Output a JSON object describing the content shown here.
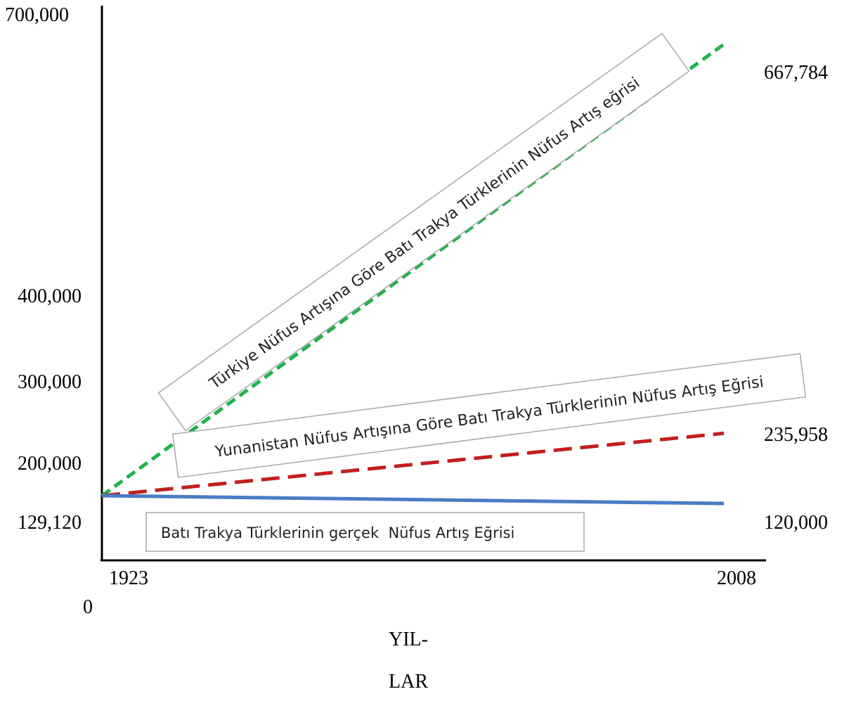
{
  "chart_data": {
    "type": "line",
    "x": [
      1923,
      2008
    ],
    "xlabel_line1": "YIL-",
    "xlabel_line2": "LAR",
    "ylabel": "",
    "y_ticks": [
      {
        "label": "700,000"
      },
      {
        "label": "400,000"
      },
      {
        "label": "300,000"
      },
      {
        "label": "200,000"
      },
      {
        "label": "129,120"
      },
      {
        "label": "0"
      }
    ],
    "x_ticks": [
      "1923",
      "2008"
    ],
    "series": [
      {
        "name": "Türkiye Nüfus Artışına Göre Batı Trakya Türklerinin Nüfus Artış eğrisi",
        "values": [
          129120,
          667784
        ],
        "end_label": "667,784",
        "color": "#1fb24a",
        "style": "dashed"
      },
      {
        "name": "Yunanistan Nüfus Artışına Göre Batı Trakya Türklerinin Nüfus Artış Eğrisi",
        "values": [
          129120,
          235958
        ],
        "end_label": "235,958",
        "color": "#c0201d",
        "style": "dashed"
      },
      {
        "name": "Batı Trakya Türklerinin gerçek  Nüfus Artış Eğrisi",
        "values": [
          129120,
          120000
        ],
        "end_label": "120,000",
        "color": "#4a7cc4",
        "style": "solid"
      }
    ],
    "grid": false,
    "legend": "inline boxed labels along lines"
  }
}
